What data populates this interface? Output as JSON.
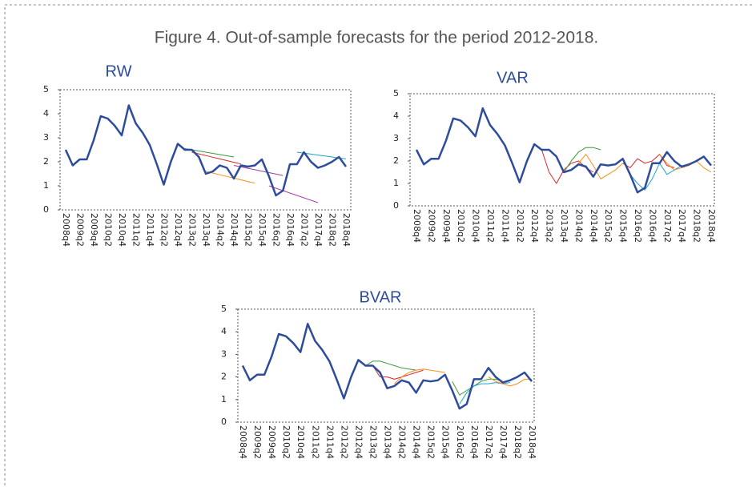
{
  "title": "Figure 4. Out-of-sample forecasts for the period 2012-2018.",
  "chart_data": [
    {
      "type": "line",
      "title": "RW",
      "ylim": [
        0,
        5
      ],
      "yticks": [
        0,
        1,
        2,
        3,
        4,
        5
      ],
      "categories": [
        "2008q4",
        null,
        "2009q2",
        null,
        "2009q4",
        null,
        "2010q2",
        null,
        "2010q4",
        null,
        "2011q2",
        null,
        "2011q4",
        null,
        "2012q2",
        null,
        "2012q4",
        null,
        "2013q2",
        null,
        "2013q4",
        null,
        "2014q2",
        null,
        "2014q4",
        null,
        "2015q2",
        null,
        "2015q4",
        null,
        "2016q2",
        null,
        "2016q4",
        null,
        "2017q2",
        null,
        "2017q4",
        null,
        "2018q2",
        null,
        "2018q4"
      ],
      "series": [
        {
          "color": "#3a9a3a",
          "values": [
            null,
            null,
            null,
            null,
            null,
            null,
            null,
            null,
            null,
            null,
            null,
            null,
            null,
            null,
            null,
            null,
            null,
            2.55,
            2.5,
            2.45,
            2.4,
            2.35,
            2.3,
            2.25,
            2.2,
            null,
            null,
            null,
            null,
            null,
            null,
            null,
            null,
            null,
            null,
            null,
            null,
            null,
            null,
            null,
            null
          ]
        },
        {
          "color": "#d62728",
          "values": [
            null,
            null,
            null,
            null,
            null,
            null,
            null,
            null,
            null,
            null,
            null,
            null,
            null,
            null,
            null,
            null,
            null,
            null,
            2.4,
            2.33,
            2.26,
            2.19,
            2.12,
            2.05,
            1.98,
            1.91,
            null,
            null,
            null,
            null,
            null,
            null,
            null,
            null,
            null,
            null,
            null,
            null,
            null,
            null,
            null
          ]
        },
        {
          "color": "#9b3fa0",
          "values": [
            null,
            null,
            null,
            null,
            null,
            null,
            null,
            null,
            null,
            null,
            null,
            null,
            null,
            null,
            null,
            null,
            null,
            null,
            null,
            null,
            null,
            null,
            null,
            null,
            1.85,
            1.79,
            1.73,
            1.67,
            1.61,
            1.55,
            1.49,
            1.43,
            null,
            null,
            null,
            null,
            null,
            null,
            null,
            null,
            null
          ]
        },
        {
          "color": "#1fa3c9",
          "values": [
            null,
            null,
            null,
            null,
            null,
            null,
            null,
            null,
            null,
            null,
            null,
            null,
            null,
            null,
            null,
            null,
            null,
            null,
            null,
            null,
            null,
            null,
            null,
            null,
            null,
            null,
            null,
            null,
            null,
            null,
            null,
            null,
            null,
            2.4,
            2.36,
            2.32,
            2.28,
            2.24,
            2.2,
            2.16,
            2.12
          ]
        },
        {
          "color": "#ff8c1a",
          "values": [
            null,
            null,
            null,
            null,
            null,
            null,
            null,
            null,
            null,
            null,
            null,
            null,
            null,
            null,
            null,
            null,
            null,
            null,
            null,
            null,
            1.6,
            1.53,
            1.46,
            1.39,
            1.32,
            1.25,
            1.18,
            1.11,
            null,
            null,
            null,
            null,
            null,
            null,
            null,
            null,
            null,
            null,
            null,
            null,
            null
          ]
        },
        {
          "color": "#b03aa8",
          "values": [
            null,
            null,
            null,
            null,
            null,
            null,
            null,
            null,
            null,
            null,
            null,
            null,
            null,
            null,
            null,
            null,
            null,
            null,
            null,
            null,
            null,
            null,
            null,
            null,
            null,
            null,
            null,
            null,
            null,
            1.0,
            0.9,
            0.8,
            0.7,
            0.6,
            0.5,
            0.4,
            0.3,
            null,
            null,
            null,
            null
          ]
        },
        {
          "color": "#2e4c9c",
          "line_width": 2.5,
          "values": [
            2.5,
            1.85,
            2.1,
            2.1,
            2.9,
            3.9,
            3.8,
            3.5,
            3.1,
            4.35,
            3.6,
            3.2,
            2.7,
            1.9,
            1.05,
            2.0,
            2.75,
            2.5,
            2.5,
            2.2,
            1.5,
            1.6,
            1.85,
            1.75,
            1.3,
            1.85,
            1.8,
            1.85,
            2.1,
            1.4,
            0.6,
            0.8,
            1.9,
            1.9,
            2.4,
            2.0,
            1.75,
            1.85,
            2.0,
            2.2,
            1.8
          ]
        }
      ]
    },
    {
      "type": "line",
      "title": "VAR",
      "ylim": [
        0,
        5
      ],
      "yticks": [
        0,
        1,
        2,
        3,
        4,
        5
      ],
      "categories": [
        "2008q4",
        null,
        "2009q2",
        null,
        "2009q4",
        null,
        "2010q2",
        null,
        "2010q4",
        null,
        "2011q2",
        null,
        "2011q4",
        null,
        "2012q2",
        null,
        "2012q4",
        null,
        "2013q2",
        null,
        "2013q4",
        null,
        "2014q2",
        null,
        "2014q4",
        null,
        "2015q2",
        null,
        "2015q4",
        null,
        "2016q2",
        null,
        "2016q4",
        null,
        "2017q2",
        null,
        "2017q4",
        null,
        "2018q2",
        null,
        "2018q4"
      ],
      "series": [
        {
          "color": "#d62728",
          "values": [
            null,
            null,
            null,
            null,
            null,
            null,
            null,
            null,
            null,
            null,
            null,
            null,
            null,
            null,
            null,
            null,
            null,
            2.5,
            1.5,
            1.0,
            1.6,
            1.9,
            2.0,
            1.7,
            1.5,
            null,
            null,
            null,
            null,
            null,
            null,
            null,
            null,
            null,
            null,
            null,
            null,
            null,
            null,
            null,
            null
          ]
        },
        {
          "color": "#3a9a3a",
          "values": [
            null,
            null,
            null,
            null,
            null,
            null,
            null,
            null,
            null,
            null,
            null,
            null,
            null,
            null,
            null,
            null,
            null,
            null,
            null,
            null,
            1.5,
            2.0,
            2.4,
            2.6,
            2.6,
            2.5,
            null,
            null,
            null,
            null,
            null,
            null,
            null,
            null,
            null,
            null,
            null,
            null,
            null,
            null,
            null
          ]
        },
        {
          "color": "#ff8c1a",
          "values": [
            null,
            null,
            null,
            null,
            null,
            null,
            null,
            null,
            null,
            null,
            null,
            null,
            null,
            null,
            null,
            null,
            null,
            null,
            null,
            null,
            null,
            1.6,
            1.9,
            2.3,
            1.8,
            1.2,
            1.4,
            1.6,
            1.9,
            null,
            null,
            null,
            null,
            null,
            null,
            null,
            null,
            null,
            null,
            null,
            null
          ]
        },
        {
          "color": "#1fa3c9",
          "values": [
            null,
            null,
            null,
            null,
            null,
            null,
            null,
            null,
            null,
            null,
            null,
            null,
            null,
            null,
            null,
            null,
            null,
            null,
            null,
            null,
            null,
            null,
            null,
            null,
            null,
            null,
            null,
            null,
            null,
            1.4,
            1.0,
            0.7,
            1.2,
            1.9,
            1.4,
            1.6,
            1.8,
            null,
            null,
            null,
            null
          ]
        },
        {
          "color": "#d62728",
          "values": [
            null,
            null,
            null,
            null,
            null,
            null,
            null,
            null,
            null,
            null,
            null,
            null,
            null,
            null,
            null,
            null,
            null,
            null,
            null,
            null,
            null,
            null,
            null,
            null,
            null,
            null,
            null,
            null,
            1.9,
            1.7,
            2.1,
            1.9,
            2.0,
            2.3,
            1.8,
            1.7,
            null,
            null,
            null,
            null,
            null
          ]
        },
        {
          "color": "#ff8c1a",
          "values": [
            null,
            null,
            null,
            null,
            null,
            null,
            null,
            null,
            null,
            null,
            null,
            null,
            null,
            null,
            null,
            null,
            null,
            null,
            null,
            null,
            null,
            null,
            null,
            null,
            null,
            null,
            null,
            null,
            null,
            null,
            null,
            null,
            null,
            2.3,
            1.9,
            1.6,
            1.7,
            1.8,
            2.0,
            1.7,
            1.5
          ]
        },
        {
          "color": "#2e4c9c",
          "line_width": 2.5,
          "values": [
            2.5,
            1.85,
            2.1,
            2.1,
            2.9,
            3.9,
            3.8,
            3.5,
            3.1,
            4.35,
            3.6,
            3.2,
            2.7,
            1.9,
            1.05,
            2.0,
            2.75,
            2.5,
            2.5,
            2.2,
            1.5,
            1.6,
            1.85,
            1.75,
            1.3,
            1.85,
            1.8,
            1.85,
            2.1,
            1.4,
            0.6,
            0.8,
            1.9,
            1.9,
            2.4,
            2.0,
            1.75,
            1.85,
            2.0,
            2.2,
            1.8
          ]
        }
      ]
    },
    {
      "type": "line",
      "title": "BVAR",
      "ylim": [
        0,
        5
      ],
      "yticks": [
        0,
        1,
        2,
        3,
        4,
        5
      ],
      "categories": [
        "2008q4",
        null,
        "2009q2",
        null,
        "2009q4",
        null,
        "2010q2",
        null,
        "2010q4",
        null,
        "2011q2",
        null,
        "2011q4",
        null,
        "2012q2",
        null,
        "2012q4",
        null,
        "2013q2",
        null,
        "2013q4",
        null,
        "2014q2",
        null,
        "2014q4",
        null,
        "2015q2",
        null,
        "2015q4",
        null,
        "2016q2",
        null,
        "2016q4",
        null,
        "2017q2",
        null,
        "2017q4",
        null,
        "2018q2",
        null,
        "2018q4"
      ],
      "series": [
        {
          "color": "#3a9a3a",
          "values": [
            null,
            null,
            null,
            null,
            null,
            null,
            null,
            null,
            null,
            null,
            null,
            null,
            null,
            null,
            null,
            null,
            null,
            2.5,
            2.7,
            2.7,
            2.6,
            2.5,
            2.4,
            2.35,
            2.3,
            null,
            null,
            null,
            null,
            null,
            null,
            null,
            null,
            null,
            null,
            null,
            null,
            null,
            null,
            null,
            null
          ]
        },
        {
          "color": "#d62728",
          "values": [
            null,
            null,
            null,
            null,
            null,
            null,
            null,
            null,
            null,
            null,
            null,
            null,
            null,
            null,
            null,
            null,
            null,
            null,
            2.5,
            2.0,
            2.0,
            1.9,
            2.0,
            2.1,
            2.2,
            2.3,
            null,
            null,
            null,
            null,
            null,
            null,
            null,
            null,
            null,
            null,
            null,
            null,
            null,
            null,
            null
          ]
        },
        {
          "color": "#ff8c1a",
          "values": [
            null,
            null,
            null,
            null,
            null,
            null,
            null,
            null,
            null,
            null,
            null,
            null,
            null,
            null,
            null,
            null,
            null,
            null,
            null,
            null,
            null,
            1.7,
            2.0,
            2.2,
            2.3,
            2.35,
            2.3,
            2.25,
            2.2,
            null,
            null,
            null,
            null,
            null,
            null,
            null,
            null,
            null,
            null,
            null,
            null
          ]
        },
        {
          "color": "#3a9a3a",
          "values": [
            null,
            null,
            null,
            null,
            null,
            null,
            null,
            null,
            null,
            null,
            null,
            null,
            null,
            null,
            null,
            null,
            null,
            null,
            null,
            null,
            null,
            null,
            null,
            null,
            null,
            null,
            null,
            null,
            null,
            1.8,
            1.2,
            1.4,
            1.6,
            1.8,
            1.9,
            1.9,
            1.8,
            null,
            null,
            null,
            null
          ]
        },
        {
          "color": "#1fa3c9",
          "values": [
            null,
            null,
            null,
            null,
            null,
            null,
            null,
            null,
            null,
            null,
            null,
            null,
            null,
            null,
            null,
            null,
            null,
            null,
            null,
            null,
            null,
            null,
            null,
            null,
            null,
            null,
            null,
            null,
            null,
            null,
            0.8,
            1.3,
            1.6,
            1.7,
            1.7,
            1.75,
            1.7,
            1.75,
            null,
            null,
            null
          ]
        },
        {
          "color": "#ff8c1a",
          "values": [
            null,
            null,
            null,
            null,
            null,
            null,
            null,
            null,
            null,
            null,
            null,
            null,
            null,
            null,
            null,
            null,
            null,
            null,
            null,
            null,
            null,
            null,
            null,
            null,
            null,
            null,
            null,
            null,
            null,
            null,
            null,
            null,
            null,
            null,
            2.0,
            1.8,
            1.7,
            1.6,
            1.7,
            1.9,
            1.9
          ]
        },
        {
          "color": "#2e4c9c",
          "line_width": 2.5,
          "values": [
            2.5,
            1.85,
            2.1,
            2.1,
            2.9,
            3.9,
            3.8,
            3.5,
            3.1,
            4.35,
            3.6,
            3.2,
            2.7,
            1.9,
            1.05,
            2.0,
            2.75,
            2.5,
            2.5,
            2.2,
            1.5,
            1.6,
            1.85,
            1.75,
            1.3,
            1.85,
            1.8,
            1.85,
            2.1,
            1.4,
            0.6,
            0.8,
            1.9,
            1.9,
            2.4,
            2.0,
            1.75,
            1.85,
            2.0,
            2.2,
            1.8
          ]
        }
      ]
    }
  ]
}
